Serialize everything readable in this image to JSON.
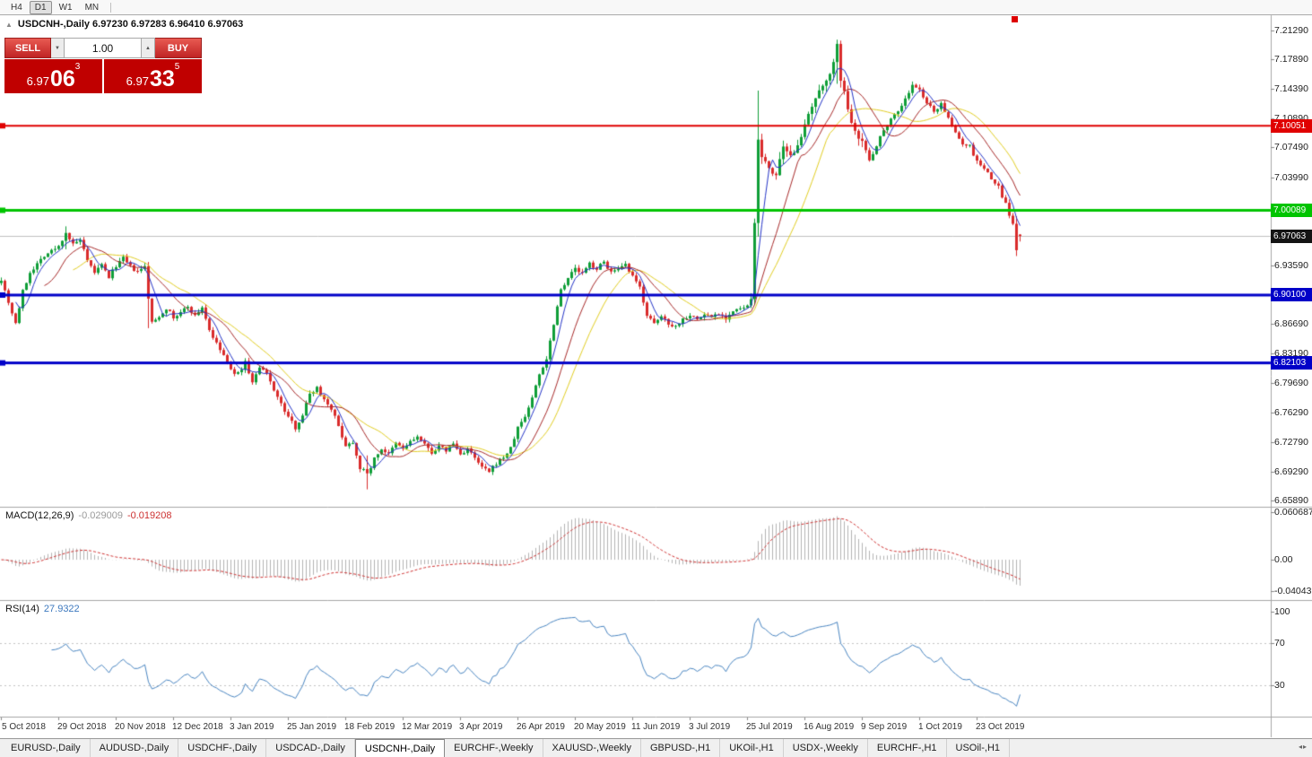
{
  "toolbar": {
    "timeframes": [
      {
        "label": "H4",
        "active": false
      },
      {
        "label": "D1",
        "active": true
      },
      {
        "label": "W1",
        "active": false
      },
      {
        "label": "MN",
        "active": false
      }
    ]
  },
  "chart_header": {
    "expand_icon": "▲",
    "title": "USDCNH-,Daily 6.97230 6.97283 6.96410 6.97063"
  },
  "trade_panel": {
    "sell_label": "SELL",
    "buy_label": "BUY",
    "volume": "1.00",
    "spin_down": "▼",
    "spin_up": "▲",
    "sell_price": {
      "prefix": "6.97",
      "big": "06",
      "sup": "3"
    },
    "buy_price": {
      "prefix": "6.97",
      "big": "33",
      "sup": "5"
    }
  },
  "price_axis": {
    "ticks": [
      {
        "label": "7.21290",
        "price": 7.2129
      },
      {
        "label": "7.17890",
        "price": 7.1789
      },
      {
        "label": "7.14390",
        "price": 7.1439
      },
      {
        "label": "7.10890",
        "price": 7.1089
      },
      {
        "label": "7.07490",
        "price": 7.0749
      },
      {
        "label": "7.03990",
        "price": 7.0399
      },
      {
        "label": "7.00490",
        "price": 7.0049
      },
      {
        "label": "6.96990",
        "price": 6.9699
      },
      {
        "label": "6.93590",
        "price": 6.9359
      },
      {
        "label": "6.90090",
        "price": 6.9009
      },
      {
        "label": "6.86690",
        "price": 6.8669
      },
      {
        "label": "6.83190",
        "price": 6.8319
      },
      {
        "label": "6.79690",
        "price": 6.7969
      },
      {
        "label": "6.76290",
        "price": 6.7629
      },
      {
        "label": "6.72790",
        "price": 6.7279
      },
      {
        "label": "6.69290",
        "price": 6.6929
      },
      {
        "label": "6.65890",
        "price": 6.6589
      }
    ]
  },
  "hlines": [
    {
      "price": 7.10051,
      "label": "7.10051",
      "color": "#e00000",
      "thickness": 2
    },
    {
      "price": 7.00089,
      "label": "7.00089",
      "color": "#00c400",
      "thickness": 3
    },
    {
      "price": 6.901,
      "label": "6.90100",
      "color": "#0000c8",
      "thickness": 3
    },
    {
      "price": 6.82103,
      "label": "6.82103",
      "color": "#0000c8",
      "thickness": 3
    }
  ],
  "current_price": {
    "value": 6.97063,
    "label": "6.97063",
    "badge_color": "#141414",
    "line_color": "#c0c0c0"
  },
  "macd_panel": {
    "title": "MACD(12,26,9)",
    "main_value": "-0.029009",
    "signal_value": "-0.019208",
    "ticks": [
      {
        "label": "0.060687",
        "value": 0.060687
      },
      {
        "label": "0.00",
        "value": 0
      },
      {
        "label": "-0.040432",
        "value": -0.040432
      }
    ],
    "range": [
      -0.0514,
      0.0664
    ],
    "histogram_color": "#b4b4b4",
    "signal_color": "#d03030"
  },
  "rsi_panel": {
    "title": "RSI(14)",
    "value": "27.9322",
    "ticks": [
      {
        "label": "100",
        "value": 100
      },
      {
        "label": "70",
        "value": 70
      },
      {
        "label": "30",
        "value": 30
      }
    ],
    "range": [
      0,
      110
    ],
    "line_color": "#4a86c2",
    "level_values": [
      70,
      30
    ]
  },
  "date_axis": {
    "labels": [
      {
        "text": "5 Oct 2018",
        "bar": 0
      },
      {
        "text": "29 Oct 2018",
        "bar": 16
      },
      {
        "text": "20 Nov 2018",
        "bar": 32
      },
      {
        "text": "12 Dec 2018",
        "bar": 48
      },
      {
        "text": "3 Jan 2019",
        "bar": 64
      },
      {
        "text": "25 Jan 2019",
        "bar": 80
      },
      {
        "text": "18 Feb 2019",
        "bar": 96
      },
      {
        "text": "12 Mar 2019",
        "bar": 112
      },
      {
        "text": "3 Apr 2019",
        "bar": 128
      },
      {
        "text": "26 Apr 2019",
        "bar": 144
      },
      {
        "text": "20 May 2019",
        "bar": 160
      },
      {
        "text": "11 Jun 2019",
        "bar": 176
      },
      {
        "text": "3 Jul 2019",
        "bar": 192
      },
      {
        "text": "25 Jul 2019",
        "bar": 208
      },
      {
        "text": "16 Aug 2019",
        "bar": 224
      },
      {
        "text": "9 Sep 2019",
        "bar": 240
      },
      {
        "text": "1 Oct 2019",
        "bar": 256
      },
      {
        "text": "23 Oct 2019",
        "bar": 272
      }
    ]
  },
  "tabbar": {
    "active_index": 4,
    "scroll_icon": "◂▸",
    "tabs": [
      "EURUSD-,Daily",
      "AUDUSD-,Daily",
      "USDCHF-,Daily",
      "USDCAD-,Daily",
      "USDCNH-,Daily",
      "EURCHF-,Weekly",
      "XAUUSD-,Weekly",
      "GBPUSD-,H1",
      "UKOil-,H1",
      "USDX-,Weekly",
      "EURCHF-,H1",
      "USOil-,H1"
    ]
  },
  "chart_data": {
    "type": "candlestick",
    "symbol": "USDCNH",
    "timeframe": "Daily",
    "bars_total": 285,
    "price_range": [
      6.6515,
      7.2308
    ],
    "bull_color": "#0f9e38",
    "bear_color": "#d92b2b",
    "last_ohlc": [
      6.9723,
      6.97283,
      6.9641,
      6.97063
    ],
    "series_anchors": [
      [
        0,
        6.92
      ],
      [
        2,
        6.893
      ],
      [
        4,
        6.868
      ],
      [
        6,
        6.905
      ],
      [
        8,
        6.928
      ],
      [
        12,
        6.948
      ],
      [
        16,
        6.958
      ],
      [
        18,
        6.975
      ],
      [
        20,
        6.96
      ],
      [
        22,
        6.966
      ],
      [
        24,
        6.94
      ],
      [
        26,
        6.928
      ],
      [
        28,
        6.936
      ],
      [
        30,
        6.922
      ],
      [
        32,
        6.936
      ],
      [
        34,
        6.944
      ],
      [
        36,
        6.934
      ],
      [
        38,
        6.928
      ],
      [
        40,
        6.934
      ],
      [
        41,
        6.898
      ],
      [
        42,
        6.868
      ],
      [
        44,
        6.876
      ],
      [
        46,
        6.886
      ],
      [
        48,
        6.874
      ],
      [
        50,
        6.88
      ],
      [
        52,
        6.888
      ],
      [
        54,
        6.876
      ],
      [
        56,
        6.887
      ],
      [
        58,
        6.86
      ],
      [
        60,
        6.843
      ],
      [
        62,
        6.83
      ],
      [
        64,
        6.812
      ],
      [
        66,
        6.808
      ],
      [
        68,
        6.822
      ],
      [
        70,
        6.798
      ],
      [
        72,
        6.815
      ],
      [
        74,
        6.808
      ],
      [
        76,
        6.79
      ],
      [
        78,
        6.772
      ],
      [
        80,
        6.757
      ],
      [
        82,
        6.745
      ],
      [
        84,
        6.76
      ],
      [
        86,
        6.785
      ],
      [
        88,
        6.792
      ],
      [
        90,
        6.778
      ],
      [
        92,
        6.768
      ],
      [
        94,
        6.746
      ],
      [
        96,
        6.724
      ],
      [
        98,
        6.728
      ],
      [
        100,
        6.698
      ],
      [
        102,
        6.69
      ],
      [
        104,
        6.708
      ],
      [
        106,
        6.72
      ],
      [
        108,
        6.713
      ],
      [
        110,
        6.726
      ],
      [
        112,
        6.72
      ],
      [
        114,
        6.728
      ],
      [
        116,
        6.734
      ],
      [
        118,
        6.724
      ],
      [
        120,
        6.716
      ],
      [
        122,
        6.722
      ],
      [
        124,
        6.718
      ],
      [
        126,
        6.726
      ],
      [
        128,
        6.713
      ],
      [
        130,
        6.72
      ],
      [
        132,
        6.708
      ],
      [
        134,
        6.698
      ],
      [
        136,
        6.692
      ],
      [
        138,
        6.703
      ],
      [
        140,
        6.71
      ],
      [
        142,
        6.72
      ],
      [
        144,
        6.745
      ],
      [
        146,
        6.758
      ],
      [
        148,
        6.78
      ],
      [
        150,
        6.808
      ],
      [
        152,
        6.826
      ],
      [
        154,
        6.868
      ],
      [
        156,
        6.908
      ],
      [
        158,
        6.922
      ],
      [
        160,
        6.932
      ],
      [
        162,
        6.926
      ],
      [
        164,
        6.938
      ],
      [
        166,
        6.932
      ],
      [
        168,
        6.94
      ],
      [
        170,
        6.928
      ],
      [
        172,
        6.93
      ],
      [
        174,
        6.936
      ],
      [
        176,
        6.922
      ],
      [
        178,
        6.91
      ],
      [
        180,
        6.878
      ],
      [
        182,
        6.866
      ],
      [
        184,
        6.876
      ],
      [
        186,
        6.868
      ],
      [
        188,
        6.864
      ],
      [
        190,
        6.873
      ],
      [
        192,
        6.878
      ],
      [
        194,
        6.872
      ],
      [
        196,
        6.878
      ],
      [
        198,
        6.876
      ],
      [
        200,
        6.88
      ],
      [
        202,
        6.874
      ],
      [
        204,
        6.882
      ],
      [
        206,
        6.884
      ],
      [
        208,
        6.888
      ],
      [
        209,
        6.892
      ],
      [
        210,
        6.986
      ],
      [
        211,
        7.088
      ],
      [
        212,
        7.06
      ],
      [
        214,
        7.052
      ],
      [
        216,
        7.042
      ],
      [
        218,
        7.072
      ],
      [
        220,
        7.062
      ],
      [
        222,
        7.082
      ],
      [
        224,
        7.098
      ],
      [
        226,
        7.122
      ],
      [
        228,
        7.138
      ],
      [
        230,
        7.158
      ],
      [
        232,
        7.172
      ],
      [
        233,
        7.193
      ],
      [
        234,
        7.158
      ],
      [
        236,
        7.118
      ],
      [
        238,
        7.098
      ],
      [
        240,
        7.082
      ],
      [
        242,
        7.06
      ],
      [
        244,
        7.078
      ],
      [
        246,
        7.096
      ],
      [
        248,
        7.11
      ],
      [
        250,
        7.118
      ],
      [
        252,
        7.132
      ],
      [
        254,
        7.148
      ],
      [
        256,
        7.142
      ],
      [
        258,
        7.128
      ],
      [
        260,
        7.116
      ],
      [
        262,
        7.128
      ],
      [
        264,
        7.108
      ],
      [
        266,
        7.092
      ],
      [
        268,
        7.08
      ],
      [
        270,
        7.076
      ],
      [
        272,
        7.058
      ],
      [
        274,
        7.05
      ],
      [
        276,
        7.038
      ],
      [
        278,
        7.028
      ],
      [
        280,
        7.008
      ],
      [
        281,
        6.996
      ],
      [
        282,
        6.984
      ],
      [
        283,
        6.952
      ],
      [
        284,
        6.9706
      ]
    ],
    "wick_overrides": [
      [
        18,
        6.982,
        6.955
      ],
      [
        41,
        6.94,
        6.862
      ],
      [
        102,
        6.712,
        6.672
      ],
      [
        211,
        7.142,
        6.97
      ],
      [
        233,
        7.202,
        7.15
      ],
      [
        283,
        6.994,
        6.947
      ]
    ],
    "moving_averages": [
      {
        "period": 5,
        "color": "#2434c8"
      },
      {
        "period": 13,
        "color": "#a82a2a"
      },
      {
        "period": 21,
        "color": "#e2ce22"
      }
    ],
    "indicators": {
      "macd": [
        12,
        26,
        9
      ],
      "rsi": 14
    }
  }
}
